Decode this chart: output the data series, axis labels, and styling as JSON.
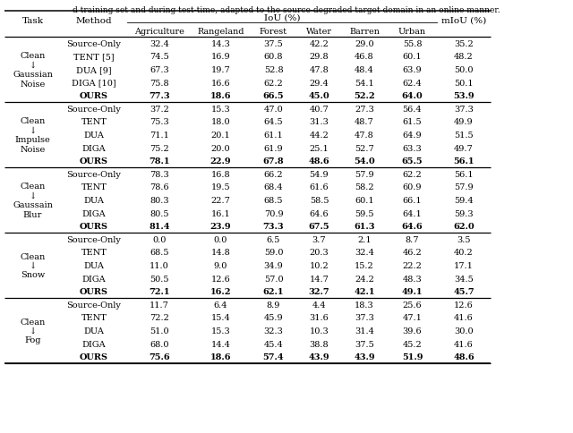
{
  "title_text": "d training set and during test-time, adapted to the source-degraded target domain in an online manner.",
  "tasks": [
    {
      "task_label": [
        "Clean",
        "↓",
        "Gaussian",
        "Noise"
      ],
      "rows": [
        {
          "method": "Source-Only",
          "bold": false,
          "values": [
            "32.4",
            "14.3",
            "37.5",
            "42.2",
            "29.0",
            "55.8",
            "35.2"
          ]
        },
        {
          "method": "TENT [5]",
          "bold": false,
          "values": [
            "74.5",
            "16.9",
            "60.8",
            "29.8",
            "46.8",
            "60.1",
            "48.2"
          ]
        },
        {
          "method": "DUA [9]",
          "bold": false,
          "values": [
            "67.3",
            "19.7",
            "52.8",
            "47.8",
            "48.4",
            "63.9",
            "50.0"
          ]
        },
        {
          "method": "DIGA [10]",
          "bold": false,
          "values": [
            "75.8",
            "16.6",
            "62.2",
            "29.4",
            "54.1",
            "62.4",
            "50.1"
          ]
        },
        {
          "method": "OURS",
          "bold": true,
          "values": [
            "77.3",
            "18.6",
            "66.5",
            "45.0",
            "52.2",
            "64.0",
            "53.9"
          ]
        }
      ]
    },
    {
      "task_label": [
        "Clean",
        "↓",
        "Impulse",
        "Noise"
      ],
      "rows": [
        {
          "method": "Source-Only",
          "bold": false,
          "values": [
            "37.2",
            "15.3",
            "47.0",
            "40.7",
            "27.3",
            "56.4",
            "37.3"
          ]
        },
        {
          "method": "TENT",
          "bold": false,
          "values": [
            "75.3",
            "18.0",
            "64.5",
            "31.3",
            "48.7",
            "61.5",
            "49.9"
          ]
        },
        {
          "method": "DUA",
          "bold": false,
          "values": [
            "71.1",
            "20.1",
            "61.1",
            "44.2",
            "47.8",
            "64.9",
            "51.5"
          ]
        },
        {
          "method": "DIGA",
          "bold": false,
          "values": [
            "75.2",
            "20.0",
            "61.9",
            "25.1",
            "52.7",
            "63.3",
            "49.7"
          ]
        },
        {
          "method": "OURS",
          "bold": true,
          "values": [
            "78.1",
            "22.9",
            "67.8",
            "48.6",
            "54.0",
            "65.5",
            "56.1"
          ]
        }
      ]
    },
    {
      "task_label": [
        "Clean",
        "↓",
        "Gaussain",
        "Blur"
      ],
      "rows": [
        {
          "method": "Source-Only",
          "bold": false,
          "values": [
            "78.3",
            "16.8",
            "66.2",
            "54.9",
            "57.9",
            "62.2",
            "56.1"
          ]
        },
        {
          "method": "TENT",
          "bold": false,
          "values": [
            "78.6",
            "19.5",
            "68.4",
            "61.6",
            "58.2",
            "60.9",
            "57.9"
          ]
        },
        {
          "method": "DUA",
          "bold": false,
          "values": [
            "80.3",
            "22.7",
            "68.5",
            "58.5",
            "60.1",
            "66.1",
            "59.4"
          ]
        },
        {
          "method": "DIGA",
          "bold": false,
          "values": [
            "80.5",
            "16.1",
            "70.9",
            "64.6",
            "59.5",
            "64.1",
            "59.3"
          ]
        },
        {
          "method": "OURS",
          "bold": true,
          "values": [
            "81.4",
            "23.9",
            "73.3",
            "67.5",
            "61.3",
            "64.6",
            "62.0"
          ]
        }
      ]
    },
    {
      "task_label": [
        "Clean",
        "↓",
        "Snow",
        ""
      ],
      "rows": [
        {
          "method": "Source-Only",
          "bold": false,
          "values": [
            "0.0",
            "0.0",
            "6.5",
            "3.7",
            "2.1",
            "8.7",
            "3.5"
          ]
        },
        {
          "method": "TENT",
          "bold": false,
          "values": [
            "68.5",
            "14.8",
            "59.0",
            "20.3",
            "32.4",
            "46.2",
            "40.2"
          ]
        },
        {
          "method": "DUA",
          "bold": false,
          "values": [
            "11.0",
            "9.0",
            "34.9",
            "10.2",
            "15.2",
            "22.2",
            "17.1"
          ]
        },
        {
          "method": "DIGA",
          "bold": false,
          "values": [
            "50.5",
            "12.6",
            "57.0",
            "14.7",
            "24.2",
            "48.3",
            "34.5"
          ]
        },
        {
          "method": "OURS",
          "bold": true,
          "values": [
            "72.1",
            "16.2",
            "62.1",
            "32.7",
            "42.1",
            "49.1",
            "45.7"
          ]
        }
      ]
    },
    {
      "task_label": [
        "Clean",
        "↓",
        "Fog",
        ""
      ],
      "rows": [
        {
          "method": "Source-Only",
          "bold": false,
          "values": [
            "11.7",
            "6.4",
            "8.9",
            "4.4",
            "18.3",
            "25.6",
            "12.6"
          ]
        },
        {
          "method": "TENT",
          "bold": false,
          "values": [
            "72.2",
            "15.4",
            "45.9",
            "31.6",
            "37.3",
            "47.1",
            "41.6"
          ]
        },
        {
          "method": "DUA",
          "bold": false,
          "values": [
            "51.0",
            "15.3",
            "32.3",
            "10.3",
            "31.4",
            "39.6",
            "30.0"
          ]
        },
        {
          "method": "DIGA",
          "bold": false,
          "values": [
            "68.0",
            "14.4",
            "45.4",
            "38.8",
            "37.5",
            "45.2",
            "41.6"
          ]
        },
        {
          "method": "OURS",
          "bold": true,
          "values": [
            "75.6",
            "18.6",
            "57.4",
            "43.9",
            "43.9",
            "51.9",
            "48.6"
          ]
        }
      ]
    }
  ],
  "col_headers": [
    "Agriculture",
    "Rangeland",
    "Forest",
    "Water",
    "Barren",
    "Urban"
  ],
  "figsize": [
    6.4,
    4.85
  ],
  "dpi": 100
}
